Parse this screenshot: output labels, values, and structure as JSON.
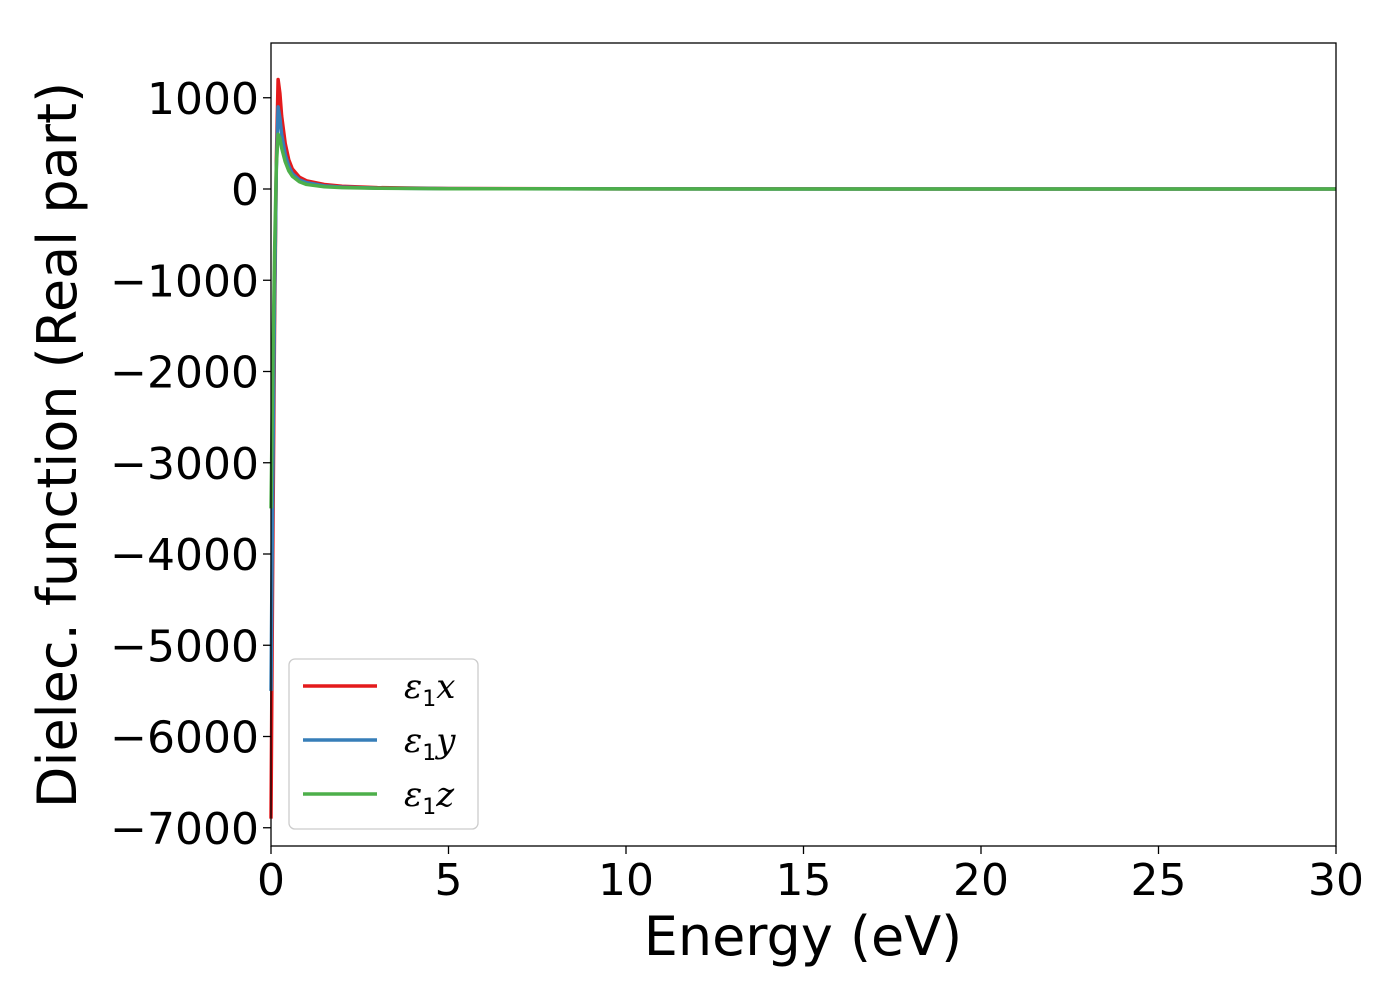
{
  "chart_data": {
    "type": "line",
    "xlabel": "Energy (eV)",
    "ylabel": "Dielec. function (Real part)",
    "xlim": [
      0,
      30
    ],
    "ylim": [
      -7200,
      1600
    ],
    "xticks": [
      0,
      5,
      10,
      15,
      20,
      25,
      30
    ],
    "xtick_labels": [
      "0",
      "5",
      "10",
      "15",
      "20",
      "25",
      "30"
    ],
    "yticks": [
      1000,
      0,
      -1000,
      -2000,
      -3000,
      -4000,
      -5000,
      -6000,
      -7000
    ],
    "ytick_labels": [
      "1000",
      "0",
      "−1000",
      "−2000",
      "−3000",
      "−4000",
      "−5000",
      "−6000",
      "−7000"
    ],
    "grid": false,
    "legend_position": "lower-left",
    "series": [
      {
        "name": "ε1x",
        "legend_base": "ε",
        "legend_sub": "1",
        "legend_var": "x",
        "color": "#e41a1c",
        "x": [
          0,
          0.05,
          0.1,
          0.15,
          0.2,
          0.25,
          0.3,
          0.4,
          0.5,
          0.6,
          0.8,
          1.0,
          1.5,
          2.0,
          3.0,
          5.0,
          10,
          15,
          20,
          25,
          30
        ],
        "y": [
          -6900,
          -4000,
          -1500,
          300,
          1200,
          1050,
          800,
          500,
          320,
          220,
          130,
          90,
          50,
          30,
          15,
          5,
          2,
          1,
          0,
          0,
          0
        ]
      },
      {
        "name": "ε1y",
        "legend_base": "ε",
        "legend_sub": "1",
        "legend_var": "y",
        "color": "#377eb8",
        "x": [
          0,
          0.05,
          0.1,
          0.15,
          0.2,
          0.25,
          0.3,
          0.4,
          0.5,
          0.6,
          0.8,
          1.0,
          1.5,
          2.0,
          3.0,
          5.0,
          10,
          15,
          20,
          25,
          30
        ],
        "y": [
          -5500,
          -3200,
          -1200,
          200,
          900,
          780,
          600,
          380,
          250,
          170,
          100,
          70,
          35,
          20,
          10,
          4,
          1,
          0,
          0,
          0,
          0
        ]
      },
      {
        "name": "ε1z",
        "legend_base": "ε",
        "legend_sub": "1",
        "legend_var": "z",
        "color": "#4daf4a",
        "x": [
          0,
          0.05,
          0.1,
          0.15,
          0.2,
          0.25,
          0.3,
          0.4,
          0.5,
          0.6,
          0.8,
          1.0,
          1.5,
          2.0,
          3.0,
          5.0,
          10,
          15,
          20,
          25,
          30
        ],
        "y": [
          -3500,
          -2000,
          -700,
          250,
          600,
          560,
          450,
          300,
          200,
          140,
          80,
          50,
          25,
          15,
          8,
          3,
          1,
          0,
          0,
          0,
          0
        ]
      }
    ]
  }
}
